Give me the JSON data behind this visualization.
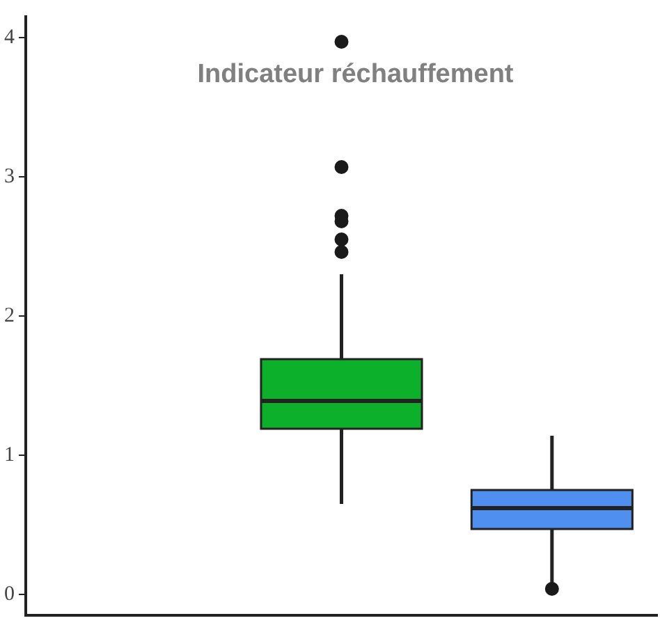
{
  "chart_data": {
    "type": "box",
    "title": "Indicateur réchauffement",
    "categories": [
      null,
      null,
      null
    ],
    "colors": [
      "#0db02b",
      "#0db02b",
      "#4f8ff0"
    ],
    "boxes": [
      null,
      {
        "low": 0.65,
        "q1": 1.19,
        "median": 1.39,
        "q3": 1.69,
        "high": 2.3,
        "outliers": [
          3.97,
          3.07,
          2.72,
          2.68,
          2.55,
          2.46
        ]
      },
      {
        "low": 0.07,
        "q1": 0.47,
        "median": 0.62,
        "q3": 0.75,
        "high": 1.14,
        "outliers": [
          0.04
        ]
      }
    ],
    "ylim": [
      -0.15,
      4.15
    ],
    "yticks": [
      0,
      1,
      2,
      3,
      4
    ],
    "grid": false,
    "legend": false,
    "tick_labels": "y"
  }
}
